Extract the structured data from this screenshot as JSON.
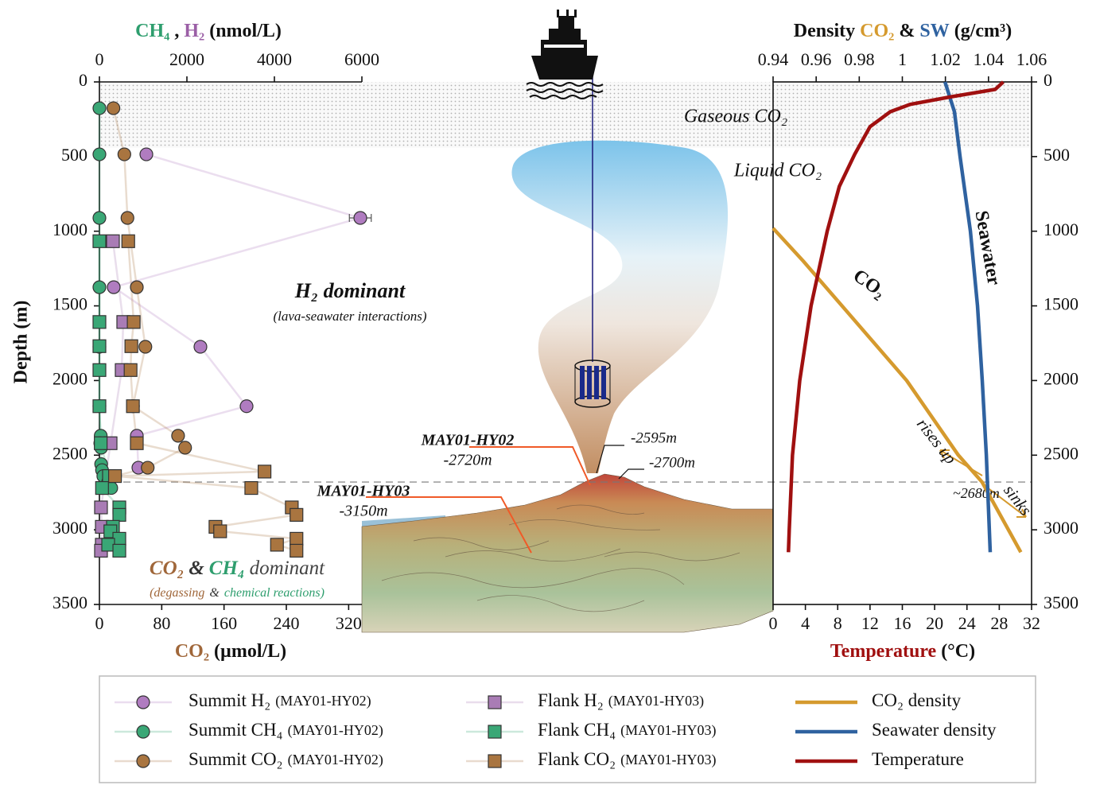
{
  "chart_data": {
    "type": "profile",
    "depth_label": "Depth (m)",
    "ylim": [
      0,
      3500
    ],
    "yticks": [
      0,
      500,
      1000,
      1500,
      2000,
      2500,
      3000,
      3500
    ],
    "xlim": [
      0,
      6000
    ],
    "xticks": [
      0,
      2000,
      4000,
      6000
    ],
    "x_title": [
      "CH₄",
      ",",
      "H₂",
      "(nmol/L)"
    ],
    "x2lim": [
      0,
      337
    ],
    "x2ticks": [
      0,
      80,
      160,
      240,
      320
    ],
    "x2_title": [
      "CO₂",
      "(µmol/L)"
    ],
    "x3lim": [
      0.94,
      1.06
    ],
    "x3ticks": [
      0.94,
      0.96,
      0.98,
      1,
      1.02,
      1.04,
      1.06
    ],
    "x3_title": [
      "Density",
      "CO₂",
      "&",
      "SW",
      "(g/cm³)"
    ],
    "x4lim": [
      0,
      32
    ],
    "x4ticks": [
      0,
      4,
      8,
      12,
      16,
      20,
      24,
      28,
      32
    ],
    "x4_title": [
      "Temperature",
      "(°C)"
    ],
    "gas_zone": [
      0,
      440
    ],
    "reference_line": {
      "value": 2680,
      "label": "~2680m"
    },
    "series": [
      {
        "name": "Summit H₂",
        "site": "(MAY01-HY02)",
        "color": "#b07cc0",
        "marker": "circle",
        "axis": "x",
        "depth": [
          485,
          911,
          1375,
          1774,
          2172,
          2370,
          2584
        ],
        "values": [
          1073,
          5964,
          327,
          2309,
          3364,
          855,
          891
        ],
        "errors": [
          null,
          250,
          null,
          null,
          null,
          null,
          null
        ]
      },
      {
        "name": "Summit CH₄",
        "site": "(MAY01-HY02)",
        "color": "#3aa776",
        "marker": "circle",
        "axis": "x",
        "depth": [
          176,
          485,
          911,
          1375,
          1774,
          2172,
          2370,
          2420,
          2450,
          2560,
          2600,
          2640,
          2680,
          2720
        ],
        "values": [
          0,
          0,
          0,
          0,
          0,
          0,
          30,
          20,
          40,
          40,
          60,
          90,
          200,
          270
        ]
      },
      {
        "name": "Summit CO₂",
        "site": "(MAY01-HY02)",
        "color": "#a97540",
        "marker": "circle",
        "axis": "x2",
        "depth": [
          176,
          485,
          911,
          1375,
          1774,
          2172,
          2370,
          2450,
          2584,
          2640
        ],
        "values": [
          18,
          32,
          36,
          48,
          59,
          43,
          101,
          110,
          62,
          20
        ]
      },
      {
        "name": "Flank H₂",
        "site": "(MAY01-HY03)",
        "color": "#a97cb5",
        "marker": "square",
        "axis": "x",
        "depth": [
          1067,
          1608,
          1930,
          2420,
          2850,
          2980,
          3100,
          3140
        ],
        "values": [
          309,
          545,
          509,
          255,
          36,
          55,
          55,
          36
        ]
      },
      {
        "name": "Flank CH₄",
        "site": "(MAY01-HY03)",
        "color": "#3aa776",
        "marker": "square",
        "axis": "x",
        "depth": [
          1067,
          1608,
          1770,
          1930,
          2172,
          2420,
          2640,
          2720,
          2850,
          2900,
          2980,
          3010,
          3060,
          3100,
          3140
        ],
        "values": [
          0,
          0,
          0,
          0,
          0,
          30,
          218,
          60,
          455,
          455,
          309,
          250,
          455,
          200,
          455
        ]
      },
      {
        "name": "Flank CO₂",
        "site": "(MAY01-HY03)",
        "color": "#a97540",
        "marker": "square",
        "axis": "x2",
        "depth": [
          1067,
          1608,
          1770,
          1930,
          2172,
          2420,
          2610,
          2640,
          2720,
          2850,
          2900,
          2980,
          3010,
          3060,
          3100,
          3140
        ],
        "values": [
          37,
          44,
          41,
          40,
          43,
          48,
          212,
          20,
          195,
          247,
          253,
          149,
          155,
          253,
          228,
          253
        ]
      },
      {
        "name": "CO₂ density",
        "color": "#d59a2e",
        "marker": "line",
        "axis": "x3",
        "depth": [
          980,
          1200,
          1500,
          2000,
          2500,
          2680,
          3150
        ],
        "values": [
          0.94,
          0.954,
          0.972,
          1.002,
          1.026,
          1.037,
          1.055
        ]
      },
      {
        "name": "Seawater density",
        "color": "#2f62a0",
        "marker": "line",
        "axis": "x3",
        "depth": [
          0,
          200,
          500,
          1000,
          1500,
          2000,
          2500,
          3150
        ],
        "values": [
          1.0198,
          1.0242,
          1.0268,
          1.0316,
          1.0349,
          1.0371,
          1.039,
          1.0408
        ]
      },
      {
        "name": "Temperature",
        "color": "#a01010",
        "marker": "line",
        "axis": "x4",
        "depth": [
          0,
          50,
          100,
          150,
          200,
          300,
          485,
          700,
          1000,
          1500,
          2000,
          2500,
          3000,
          3150
        ],
        "values": [
          28.5,
          27.5,
          22,
          17,
          14.5,
          12,
          10.1,
          8.2,
          6.7,
          4.7,
          3.3,
          2.4,
          2.0,
          1.9
        ]
      }
    ],
    "annotations": [
      "Gaseous CO₂",
      "Liquid CO₂",
      "H₂ dominant",
      "(lava-seawater interactions)",
      [
        "CO₂",
        "&",
        "CH₄",
        "dominant"
      ],
      [
        "(degassing",
        "&",
        "chemical reactions)"
      ],
      "Seawater",
      "CO₂",
      "rises up",
      "sinks",
      "MAY01-HY02",
      "-2720m",
      "MAY01-HY03",
      "-3150m",
      "-2595m",
      "-2700m"
    ]
  }
}
